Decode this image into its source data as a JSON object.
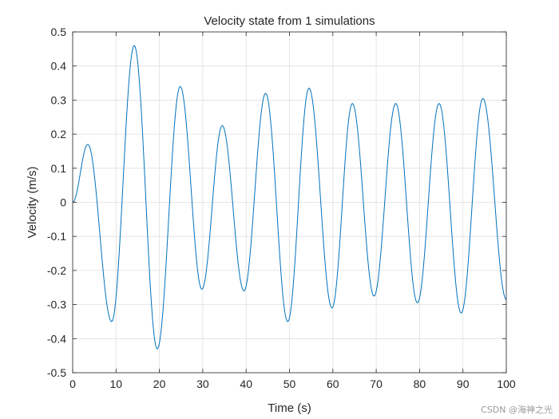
{
  "chart_data": {
    "type": "line",
    "title": "Velocity state from 1 simulations",
    "xlabel": "Time (s)",
    "ylabel": "Velocity (m/s)",
    "xlim": [
      0,
      100
    ],
    "ylim": [
      -0.5,
      0.5
    ],
    "grid": true,
    "x_ticks": [
      0,
      10,
      20,
      30,
      40,
      50,
      60,
      70,
      80,
      90,
      100
    ],
    "y_ticks": [
      -0.5,
      -0.4,
      -0.3,
      -0.2,
      -0.1,
      0,
      0.1,
      0.2,
      0.3,
      0.4,
      0.5
    ],
    "series": [
      {
        "name": "Velocity",
        "color": "#0072BD",
        "x": [
          0,
          3.5,
          9,
          14.2,
          19.5,
          24.8,
          29.8,
          34.5,
          39.5,
          44.5,
          49.6,
          54.5,
          59.8,
          64.5,
          69.5,
          74.5,
          79.5,
          84.5,
          89.6,
          94.6,
          100
        ],
        "y": [
          0,
          0.17,
          -0.35,
          0.46,
          -0.43,
          0.34,
          -0.255,
          0.225,
          -0.26,
          0.32,
          -0.35,
          0.335,
          -0.31,
          0.29,
          -0.275,
          0.29,
          -0.295,
          0.29,
          -0.325,
          0.305,
          -0.285
        ]
      }
    ]
  },
  "watermark": "CSDN @海神之光",
  "colors": {
    "line": "#0072BD",
    "grid": "#dfdfdf",
    "axis": "#262626"
  }
}
